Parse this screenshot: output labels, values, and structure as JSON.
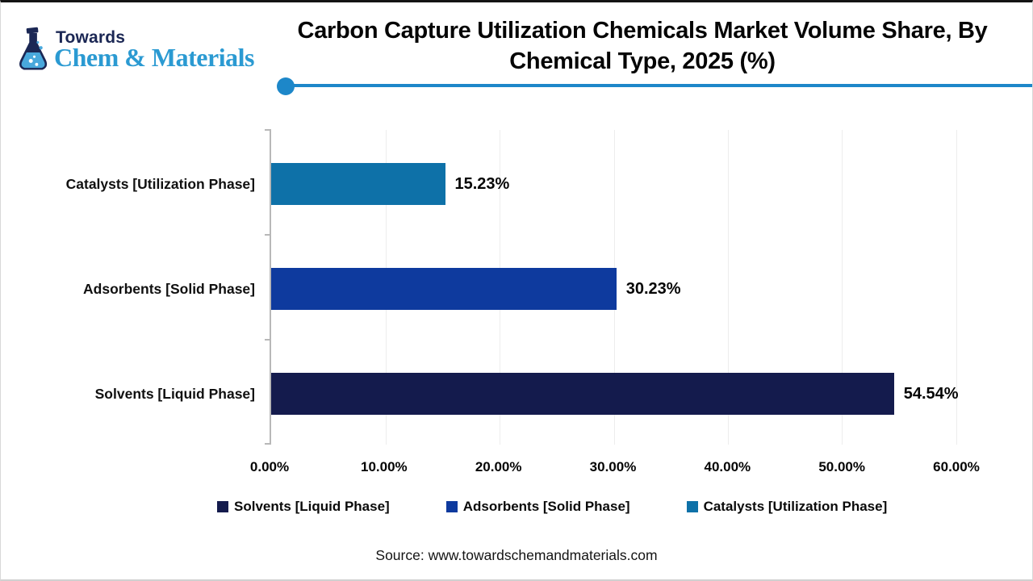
{
  "header": {
    "logo": {
      "brand_top": "Towards",
      "brand_bottom": "Chem & Materials"
    },
    "title": "Carbon Capture Utilization Chemicals Market Volume Share, By Chemical Type, 2025 (%)"
  },
  "accent": {
    "divider": "#1d87c9",
    "brand_blue": "#2b9ad2",
    "brand_navy": "#1b2754"
  },
  "chart_data": {
    "type": "bar",
    "orientation": "horizontal",
    "title": "Carbon Capture Utilization Chemicals Market Volume Share, By Chemical Type, 2025 (%)",
    "categories": [
      "Catalysts [Utilization Phase]",
      "Adsorbents [Solid Phase]",
      "Solvents [Liquid Phase]"
    ],
    "values": [
      15.23,
      30.23,
      54.54
    ],
    "value_labels": [
      "15.23%",
      "30.23%",
      "54.54%"
    ],
    "colors": [
      "#0e71a8",
      "#0e3a9e",
      "#141b4d"
    ],
    "xlim": [
      0,
      60
    ],
    "x_ticks": [
      "0.00%",
      "10.00%",
      "20.00%",
      "30.00%",
      "40.00%",
      "50.00%",
      "60.00%"
    ],
    "grid": true,
    "legend_position": "bottom",
    "legend": [
      {
        "label": "Solvents [Liquid Phase]",
        "color": "#141b4d"
      },
      {
        "label": "Adsorbents [Solid Phase]",
        "color": "#0e3a9e"
      },
      {
        "label": "Catalysts [Utilization Phase]",
        "color": "#0e71a8"
      }
    ]
  },
  "footer": {
    "source": "Source: www.towardschemandmaterials.com"
  }
}
